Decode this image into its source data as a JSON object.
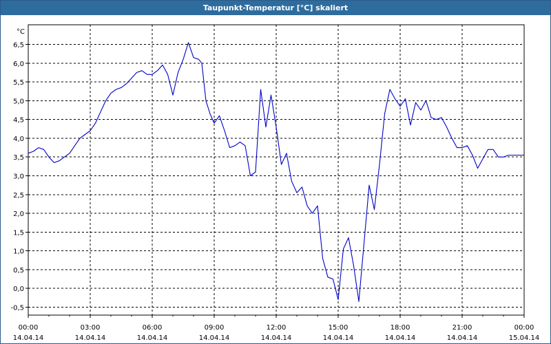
{
  "window": {
    "title": "Taupunkt-Temperatur [°C] skaliert"
  },
  "colors": {
    "title_bar": "#2f6c9e",
    "line": "#0000c8",
    "grid": "#000000",
    "background": "#ffffff"
  },
  "chart_data": {
    "type": "line",
    "title": "Taupunkt-Temperatur [°C] skaliert",
    "ylabel": "°C",
    "ylim": [
      -0.75,
      7.0
    ],
    "yticks": [
      "6,5",
      "6,0",
      "5,5",
      "5,0",
      "4,5",
      "4,0",
      "3,5",
      "3,0",
      "2,5",
      "2,0",
      "1,5",
      "1,0",
      "0,5",
      "0,0",
      "-0,5"
    ],
    "ytick_values": [
      6.5,
      6.0,
      5.5,
      5.0,
      4.5,
      4.0,
      3.5,
      3.0,
      2.5,
      2.0,
      1.5,
      1.0,
      0.5,
      0.0,
      -0.5
    ],
    "xlim_hours": [
      0,
      24
    ],
    "xticks": [
      {
        "time": "00:00",
        "date": "14.04.14"
      },
      {
        "time": "03:00",
        "date": "14.04.14"
      },
      {
        "time": "06:00",
        "date": "14.04.14"
      },
      {
        "time": "09:00",
        "date": "14.04.14"
      },
      {
        "time": "12:00",
        "date": "14.04.14"
      },
      {
        "time": "15:00",
        "date": "14.04.14"
      },
      {
        "time": "18:00",
        "date": "14.04.14"
      },
      {
        "time": "21:00",
        "date": "14.04.14"
      },
      {
        "time": "00:00",
        "date": "15.04.14"
      }
    ],
    "grid": true,
    "series": [
      {
        "x_hours": [
          0.0,
          0.25,
          0.5,
          0.75,
          1.0,
          1.25,
          1.5,
          1.75,
          2.0,
          2.25,
          2.5,
          2.75,
          3.0,
          3.25,
          3.5,
          3.75,
          4.0,
          4.25,
          4.5,
          4.75,
          5.0,
          5.25,
          5.5,
          5.75,
          6.0,
          6.25,
          6.5,
          6.75,
          7.0,
          7.25,
          7.5,
          7.75,
          8.0,
          8.25,
          8.4,
          8.6,
          8.8,
          9.0,
          9.25,
          9.5,
          9.75,
          10.0,
          10.25,
          10.5,
          10.75,
          11.0,
          11.25,
          11.5,
          11.75,
          12.0,
          12.25,
          12.5,
          12.75,
          13.0,
          13.25,
          13.5,
          13.75,
          14.0,
          14.25,
          14.5,
          14.75,
          15.0,
          15.25,
          15.5,
          15.75,
          16.0,
          16.25,
          16.5,
          16.75,
          17.0,
          17.25,
          17.5,
          17.75,
          18.0,
          18.25,
          18.5,
          18.75,
          19.0,
          19.25,
          19.5,
          19.75,
          20.0,
          20.25,
          20.5,
          20.75,
          21.0,
          21.25,
          21.5,
          21.75,
          22.0,
          22.25,
          22.5,
          22.75,
          23.0,
          23.25,
          23.5,
          23.75,
          24.0
        ],
        "values": [
          3.6,
          3.65,
          3.75,
          3.7,
          3.5,
          3.35,
          3.4,
          3.5,
          3.6,
          3.8,
          4.0,
          4.1,
          4.2,
          4.4,
          4.7,
          5.0,
          5.2,
          5.3,
          5.35,
          5.45,
          5.6,
          5.75,
          5.8,
          5.7,
          5.7,
          5.8,
          5.95,
          5.7,
          5.15,
          5.75,
          6.1,
          6.55,
          6.15,
          6.1,
          6.0,
          5.0,
          4.65,
          4.4,
          4.6,
          4.2,
          3.75,
          3.8,
          3.9,
          3.8,
          3.0,
          3.1,
          5.3,
          4.3,
          5.15,
          4.3,
          3.3,
          3.6,
          2.85,
          2.55,
          2.7,
          2.2,
          2.0,
          2.2,
          0.8,
          0.3,
          0.25,
          -0.3,
          1.05,
          1.35,
          0.6,
          -0.35,
          1.2,
          2.75,
          2.1,
          3.3,
          4.65,
          5.3,
          5.05,
          4.85,
          5.05,
          4.35,
          4.95,
          4.75,
          5.0,
          4.55,
          4.5,
          4.55,
          4.3,
          4.0,
          3.75,
          3.75,
          3.8,
          3.55,
          3.2,
          3.45,
          3.7,
          3.7,
          3.5,
          3.5,
          3.55,
          3.55,
          3.55,
          3.55
        ]
      }
    ]
  }
}
